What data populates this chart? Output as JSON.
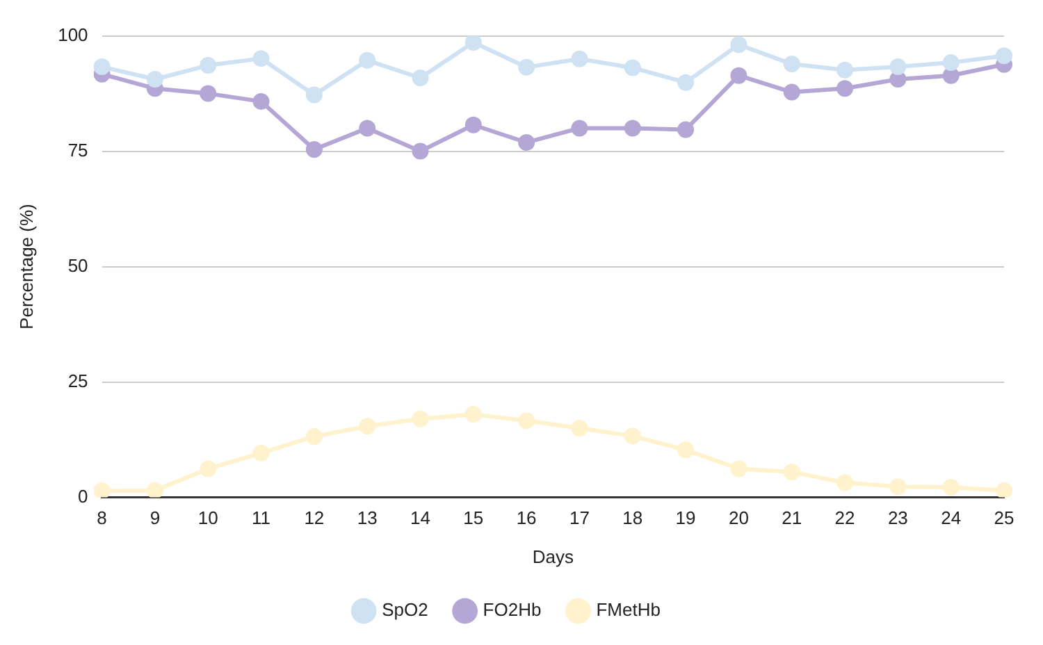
{
  "chart_data": {
    "type": "line",
    "xlabel": "Days",
    "ylabel": "Percentage (%)",
    "categories": [
      "8",
      "9",
      "10",
      "11",
      "12",
      "13",
      "14",
      "15",
      "16",
      "17",
      "18",
      "19",
      "20",
      "21",
      "22",
      "23",
      "24",
      "25"
    ],
    "series": [
      {
        "name": "SpO2",
        "color": "#cfe2f3",
        "values": [
          93.3,
          90.6,
          93.6,
          95.1,
          87.2,
          94.7,
          90.9,
          98.6,
          93.2,
          95,
          93.1,
          89.9,
          98.1,
          93.9,
          92.6,
          93.3,
          94.2,
          95.7
        ]
      },
      {
        "name": "FO2Hb",
        "color": "#b4a7d6",
        "values": [
          91.7,
          88.6,
          87.5,
          85.8,
          75.4,
          80,
          75,
          80.7,
          76.9,
          80,
          80,
          79.7,
          91.4,
          87.8,
          88.6,
          90.6,
          91.4,
          93.8
        ]
      },
      {
        "name": "FMetHb",
        "color": "#fff2cc",
        "values": [
          1.4,
          1.5,
          6.2,
          9.6,
          13.2,
          15.4,
          17,
          18,
          16.6,
          15,
          13.3,
          10.3,
          6.2,
          5.5,
          3.2,
          2.3,
          2.2,
          1.5
        ]
      }
    ],
    "ylim": [
      0,
      100
    ],
    "yticks": [
      0,
      25,
      50,
      75,
      100
    ],
    "grid": "y",
    "legend": "bottom",
    "marker": "circle",
    "line_style": "solid"
  }
}
